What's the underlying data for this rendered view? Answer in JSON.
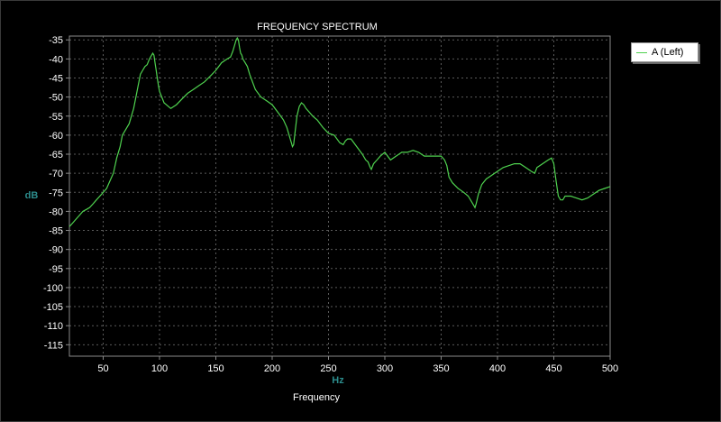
{
  "chart_data": {
    "type": "line",
    "title": "FREQUENCY SPECTRUM",
    "xlabel": "Frequency",
    "xunit": "Hz",
    "ylabel": "dB",
    "xlim": [
      20,
      500
    ],
    "ylim": [
      -118,
      -34
    ],
    "xticks": [
      50,
      100,
      150,
      200,
      250,
      300,
      350,
      400,
      450,
      500
    ],
    "yticks": [
      -35,
      -40,
      -45,
      -50,
      -55,
      -60,
      -65,
      -70,
      -75,
      -80,
      -85,
      -90,
      -95,
      -100,
      -105,
      -110,
      -115
    ],
    "grid": true,
    "legend_position": "top-right",
    "series": [
      {
        "name": "A (Left)",
        "color": "#4fd24f",
        "x": [
          20,
          23,
          26,
          29,
          32,
          35,
          38,
          41,
          44,
          47,
          50,
          53,
          56,
          59,
          62,
          65,
          67,
          69,
          71,
          73,
          75,
          77,
          79,
          81,
          83,
          85,
          87,
          89,
          91,
          93,
          94,
          95,
          96,
          97,
          98,
          99,
          100,
          102,
          104,
          106,
          108,
          110,
          115,
          120,
          125,
          130,
          135,
          140,
          145,
          150,
          155,
          160,
          163,
          165,
          167,
          168,
          169,
          170,
          171,
          172,
          173,
          174,
          176,
          178,
          180,
          185,
          190,
          195,
          200,
          205,
          210,
          213,
          215,
          217,
          218,
          219,
          220,
          222,
          224,
          226,
          228,
          230,
          233,
          236,
          240,
          245,
          250,
          255,
          260,
          263,
          265,
          267,
          270,
          275,
          280,
          283,
          285,
          287,
          288,
          290,
          293,
          296,
          300,
          305,
          310,
          315,
          320,
          325,
          330,
          335,
          340,
          345,
          350,
          353,
          355,
          357,
          360,
          365,
          370,
          374,
          377,
          379,
          380,
          381,
          383,
          386,
          390,
          395,
          400,
          405,
          410,
          415,
          420,
          425,
          430,
          433,
          435,
          440,
          445,
          448,
          450,
          452,
          454,
          456,
          458,
          460,
          465,
          470,
          475,
          480,
          485,
          490,
          495,
          500
        ],
        "values": [
          -84,
          -83,
          -82,
          -81,
          -80,
          -79.5,
          -79,
          -78,
          -77,
          -76,
          -75,
          -74,
          -72,
          -70,
          -66,
          -63,
          -60,
          -59,
          -58,
          -57,
          -55,
          -53,
          -50,
          -47,
          -44,
          -43,
          -42,
          -41.5,
          -40,
          -39,
          -38.5,
          -39,
          -41,
          -43,
          -45,
          -47,
          -48.5,
          -50,
          -51.5,
          -52,
          -52.5,
          -53,
          -52,
          -50.5,
          -49,
          -48,
          -47,
          -46,
          -44.5,
          -43,
          -41,
          -40,
          -39.5,
          -38,
          -36,
          -35,
          -34.5,
          -35,
          -37,
          -38.5,
          -39,
          -40,
          -41,
          -42,
          -44,
          -48,
          -50,
          -51,
          -52,
          -54,
          -56,
          -58,
          -60,
          -62,
          -63,
          -62.5,
          -60,
          -55,
          -52.5,
          -51.5,
          -52,
          -53,
          -54,
          -55,
          -56,
          -58,
          -59.5,
          -60,
          -62,
          -62.5,
          -61.5,
          -61,
          -61,
          -63,
          -65,
          -66.5,
          -67,
          -68.5,
          -69,
          -67.5,
          -66.5,
          -65.5,
          -64.5,
          -66.5,
          -65.5,
          -64.5,
          -64.5,
          -64,
          -64.5,
          -65.5,
          -65.5,
          -65.5,
          -65.5,
          -66.5,
          -68,
          -71,
          -72.5,
          -74,
          -75,
          -76,
          -77.5,
          -78.5,
          -79,
          -78,
          -75.5,
          -73,
          -71.5,
          -70.5,
          -69.5,
          -68.5,
          -68,
          -67.5,
          -67.5,
          -68.5,
          -69.5,
          -70,
          -68.5,
          -67.5,
          -66.5,
          -66,
          -67.5,
          -72,
          -76,
          -77,
          -77,
          -76,
          -76,
          -76.5,
          -77,
          -76.5,
          -75.5,
          -74.5,
          -74,
          -73.5
        ]
      }
    ]
  }
}
